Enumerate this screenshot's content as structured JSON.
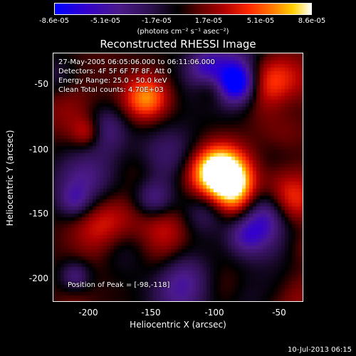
{
  "colorbar": {
    "ticks": [
      "-8.6e-05",
      "-5.1e-05",
      "-1.7e-05",
      "1.7e-05",
      "5.1e-05",
      "8.6e-05"
    ],
    "units": "(photons cm⁻² s⁻¹ asec⁻²)"
  },
  "title": "Reconstructed RHESSI Image",
  "info": {
    "time_range": "27-May-2005 06:05:06.000 to 06:11:06.000",
    "detectors": "Detectors: 4F 5F 6F 7F 8F, Att 0",
    "energy": "Energy Range: 25.0 - 50.0 keV",
    "clean": "Clean     Total counts: 4.70E+03",
    "peak": "Position of Peak = [-98,-118]"
  },
  "axes": {
    "xlabel": "Heliocentric X (arcsec)",
    "ylabel": "Heliocentric Y (arcsec)",
    "xticks": [
      "-200",
      "-150",
      "-100",
      "-50"
    ],
    "yticks": [
      "-50",
      "-100",
      "-150",
      "-200"
    ],
    "xrange": [
      -225,
      -33
    ],
    "yrange": [
      -218,
      -27
    ]
  },
  "peak_position": [
    -98,
    -118
  ],
  "timestamp": "10-Jul-2013 06:15"
}
